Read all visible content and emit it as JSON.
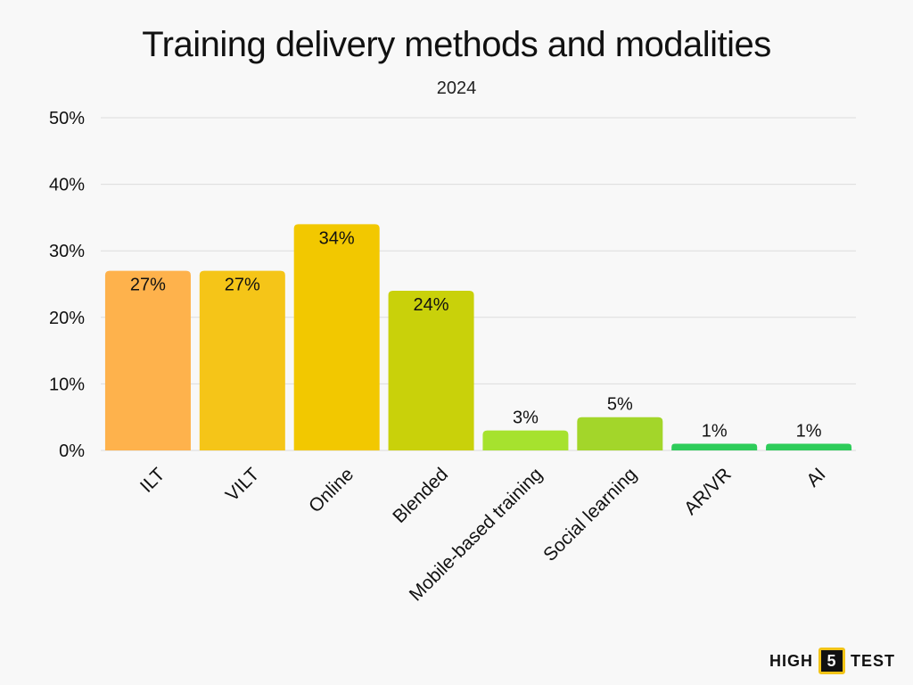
{
  "chart_data": {
    "type": "bar",
    "title": "Training delivery methods and modalities",
    "subtitle": "2024",
    "categories": [
      "ILT",
      "VILT",
      "Online",
      "Blended",
      "Mobile-based training",
      "Social learning",
      "AR/VR",
      "AI"
    ],
    "values": [
      27,
      27,
      34,
      24,
      3,
      5,
      1,
      1
    ],
    "value_labels": [
      "27%",
      "27%",
      "34%",
      "24%",
      "3%",
      "5%",
      "1%",
      "1%"
    ],
    "colors": [
      "#feb24c",
      "#f5c518",
      "#f2c800",
      "#c9d10a",
      "#a6e22e",
      "#a3d62a",
      "#2ecc5a",
      "#2ecc5a"
    ],
    "ylim": [
      0,
      50
    ],
    "yticks": [
      0,
      10,
      20,
      30,
      40,
      50
    ],
    "ytick_labels": [
      "0%",
      "10%",
      "20%",
      "30%",
      "40%",
      "50%"
    ],
    "xlabel": "",
    "ylabel": "",
    "grid": true
  },
  "branding": {
    "logo_left": "HIGH",
    "logo_mid": "5",
    "logo_right": "TEST"
  }
}
